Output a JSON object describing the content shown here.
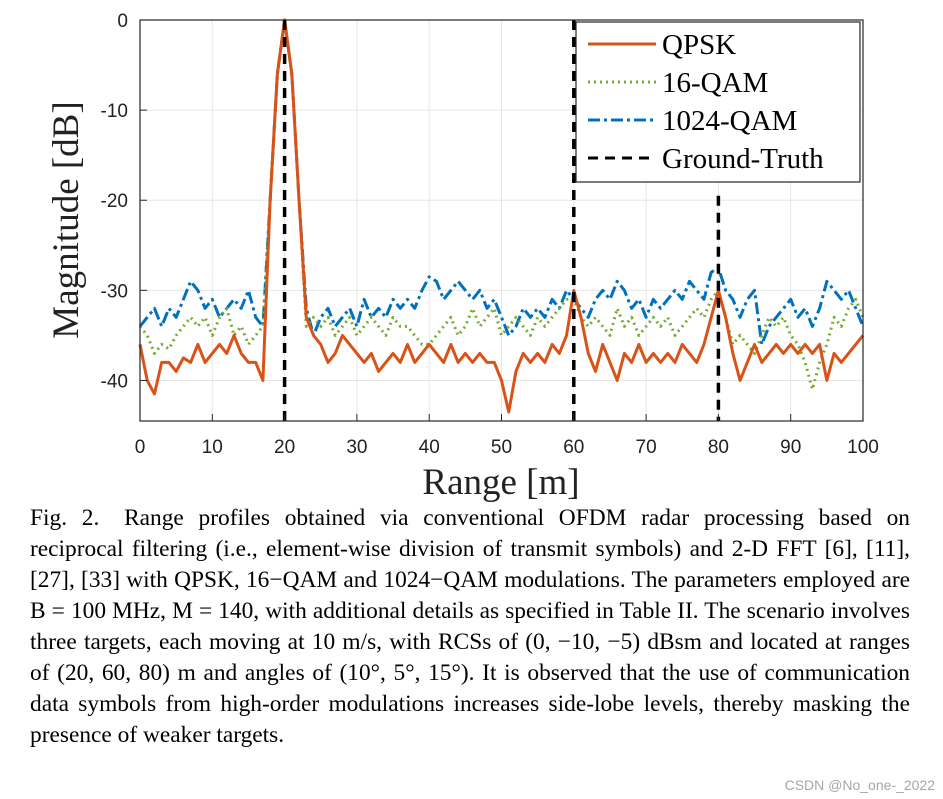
{
  "chart_data": {
    "type": "line",
    "xlabel": "Range [m]",
    "ylabel": "Magnitude [dB]",
    "xlim": [
      0,
      100
    ],
    "ylim": [
      -44.5,
      0
    ],
    "x_ticks": [
      "0",
      "10",
      "20",
      "30",
      "40",
      "50",
      "60",
      "70",
      "80",
      "90",
      "100"
    ],
    "y_ticks": [
      "0",
      "-10",
      "-20",
      "-30",
      "-40"
    ],
    "y_tick_values": [
      0,
      -10,
      -20,
      -30,
      -40
    ],
    "grid": true,
    "legend_position": "top-right",
    "series": [
      {
        "name": "QPSK",
        "color": "#d95319",
        "style": "solid",
        "points": [
          [
            0,
            -36
          ],
          [
            1,
            -40
          ],
          [
            2,
            -41.5
          ],
          [
            3,
            -38
          ],
          [
            4,
            -38
          ],
          [
            5,
            -39
          ],
          [
            6,
            -37.5
          ],
          [
            7,
            -38
          ],
          [
            8,
            -36
          ],
          [
            9,
            -38
          ],
          [
            10,
            -37
          ],
          [
            11,
            -36
          ],
          [
            12,
            -37
          ],
          [
            13,
            -35
          ],
          [
            14,
            -37
          ],
          [
            15,
            -38
          ],
          [
            16,
            -38
          ],
          [
            17,
            -40
          ],
          [
            18,
            -20
          ],
          [
            19,
            -6
          ],
          [
            20,
            0
          ],
          [
            21,
            -6
          ],
          [
            22,
            -20
          ],
          [
            23,
            -33
          ],
          [
            24,
            -35
          ],
          [
            25,
            -36
          ],
          [
            26,
            -38
          ],
          [
            27,
            -37
          ],
          [
            28,
            -35
          ],
          [
            29,
            -36
          ],
          [
            30,
            -37
          ],
          [
            31,
            -38
          ],
          [
            32,
            -37
          ],
          [
            33,
            -39
          ],
          [
            34,
            -38
          ],
          [
            35,
            -37
          ],
          [
            36,
            -38
          ],
          [
            37,
            -36
          ],
          [
            38,
            -38
          ],
          [
            39,
            -37
          ],
          [
            40,
            -36
          ],
          [
            41,
            -37
          ],
          [
            42,
            -38
          ],
          [
            43,
            -36
          ],
          [
            44,
            -38
          ],
          [
            45,
            -37
          ],
          [
            46,
            -38
          ],
          [
            47,
            -37
          ],
          [
            48,
            -38
          ],
          [
            49,
            -38
          ],
          [
            50,
            -40
          ],
          [
            51,
            -43.5
          ],
          [
            52,
            -39
          ],
          [
            53,
            -37
          ],
          [
            54,
            -38
          ],
          [
            55,
            -37
          ],
          [
            56,
            -38
          ],
          [
            57,
            -36
          ],
          [
            58,
            -37
          ],
          [
            59,
            -35
          ],
          [
            60,
            -30
          ],
          [
            61,
            -33
          ],
          [
            62,
            -37
          ],
          [
            63,
            -39
          ],
          [
            64,
            -36
          ],
          [
            65,
            -38
          ],
          [
            66,
            -40
          ],
          [
            67,
            -37
          ],
          [
            68,
            -38
          ],
          [
            69,
            -36
          ],
          [
            70,
            -38
          ],
          [
            71,
            -37
          ],
          [
            72,
            -38
          ],
          [
            73,
            -37
          ],
          [
            74,
            -38
          ],
          [
            75,
            -36
          ],
          [
            76,
            -37
          ],
          [
            77,
            -38
          ],
          [
            78,
            -36
          ],
          [
            79,
            -33
          ],
          [
            80,
            -30
          ],
          [
            81,
            -33
          ],
          [
            82,
            -37
          ],
          [
            83,
            -40
          ],
          [
            84,
            -38
          ],
          [
            85,
            -36
          ],
          [
            86,
            -38
          ],
          [
            87,
            -37
          ],
          [
            88,
            -36
          ],
          [
            89,
            -37
          ],
          [
            90,
            -36
          ],
          [
            91,
            -37
          ],
          [
            92,
            -36
          ],
          [
            93,
            -37
          ],
          [
            94,
            -36
          ],
          [
            95,
            -40
          ],
          [
            96,
            -37
          ],
          [
            97,
            -38
          ],
          [
            98,
            -37
          ],
          [
            99,
            -36
          ],
          [
            100,
            -35
          ]
        ]
      },
      {
        "name": "16-QAM",
        "color": "#77ac30",
        "style": "dotted",
        "points": [
          [
            0,
            -34
          ],
          [
            1,
            -35
          ],
          [
            2,
            -37
          ],
          [
            3,
            -36
          ],
          [
            4,
            -36.5
          ],
          [
            5,
            -35
          ],
          [
            6,
            -34
          ],
          [
            7,
            -33
          ],
          [
            8,
            -34
          ],
          [
            9,
            -33
          ],
          [
            10,
            -35
          ],
          [
            11,
            -33
          ],
          [
            12,
            -32
          ],
          [
            13,
            -35
          ],
          [
            14,
            -34
          ],
          [
            15,
            -36
          ],
          [
            16,
            -35
          ],
          [
            17,
            -34
          ],
          [
            18,
            -20
          ],
          [
            19,
            -6
          ],
          [
            20,
            0
          ],
          [
            21,
            -6
          ],
          [
            22,
            -20
          ],
          [
            23,
            -34
          ],
          [
            24,
            -33
          ],
          [
            25,
            -34
          ],
          [
            26,
            -33
          ],
          [
            27,
            -35
          ],
          [
            28,
            -34
          ],
          [
            29,
            -33
          ],
          [
            30,
            -35
          ],
          [
            31,
            -34
          ],
          [
            32,
            -33
          ],
          [
            33,
            -34
          ],
          [
            34,
            -35
          ],
          [
            35,
            -33
          ],
          [
            36,
            -34
          ],
          [
            37,
            -34
          ],
          [
            38,
            -35
          ],
          [
            39,
            -36
          ],
          [
            40,
            -36
          ],
          [
            41,
            -35
          ],
          [
            42,
            -34
          ],
          [
            43,
            -33
          ],
          [
            44,
            -35
          ],
          [
            45,
            -34
          ],
          [
            46,
            -32
          ],
          [
            47,
            -34
          ],
          [
            48,
            -33
          ],
          [
            49,
            -32
          ],
          [
            50,
            -35
          ],
          [
            51,
            -34
          ],
          [
            52,
            -33
          ],
          [
            53,
            -34
          ],
          [
            54,
            -35
          ],
          [
            55,
            -33
          ],
          [
            56,
            -34
          ],
          [
            57,
            -33
          ],
          [
            58,
            -32
          ],
          [
            59,
            -31
          ],
          [
            60,
            -31
          ],
          [
            61,
            -33
          ],
          [
            62,
            -34
          ],
          [
            63,
            -33
          ],
          [
            64,
            -34
          ],
          [
            65,
            -35
          ],
          [
            66,
            -32
          ],
          [
            67,
            -34
          ],
          [
            68,
            -33
          ],
          [
            69,
            -35
          ],
          [
            70,
            -34
          ],
          [
            71,
            -33
          ],
          [
            72,
            -34
          ],
          [
            73,
            -33
          ],
          [
            74,
            -35
          ],
          [
            75,
            -34
          ],
          [
            76,
            -33
          ],
          [
            77,
            -32
          ],
          [
            78,
            -33
          ],
          [
            79,
            -31
          ],
          [
            80,
            -30
          ],
          [
            81,
            -33
          ],
          [
            82,
            -36
          ],
          [
            83,
            -35
          ],
          [
            84,
            -36
          ],
          [
            85,
            -37
          ],
          [
            86,
            -35
          ],
          [
            87,
            -33
          ],
          [
            88,
            -34
          ],
          [
            89,
            -33
          ],
          [
            90,
            -35
          ],
          [
            91,
            -36
          ],
          [
            92,
            -38
          ],
          [
            93,
            -41
          ],
          [
            94,
            -38
          ],
          [
            95,
            -36
          ],
          [
            96,
            -33
          ],
          [
            97,
            -34
          ],
          [
            98,
            -32
          ],
          [
            99,
            -31
          ],
          [
            100,
            -33
          ]
        ]
      },
      {
        "name": "1024-QAM",
        "color": "#0072bd",
        "style": "dashdot",
        "points": [
          [
            0,
            -34
          ],
          [
            1,
            -33
          ],
          [
            2,
            -32
          ],
          [
            3,
            -34
          ],
          [
            4,
            -32
          ],
          [
            5,
            -33
          ],
          [
            6,
            -31
          ],
          [
            7,
            -29
          ],
          [
            8,
            -30
          ],
          [
            9,
            -32
          ],
          [
            10,
            -31
          ],
          [
            11,
            -33
          ],
          [
            12,
            -32
          ],
          [
            13,
            -31
          ],
          [
            14,
            -32
          ],
          [
            15,
            -30
          ],
          [
            16,
            -33
          ],
          [
            17,
            -34
          ],
          [
            18,
            -20
          ],
          [
            19,
            -6
          ],
          [
            20,
            0
          ],
          [
            21,
            -6
          ],
          [
            22,
            -20
          ],
          [
            23,
            -32
          ],
          [
            24,
            -35
          ],
          [
            25,
            -33
          ],
          [
            26,
            -32
          ],
          [
            27,
            -34
          ],
          [
            28,
            -33
          ],
          [
            29,
            -32
          ],
          [
            30,
            -34
          ],
          [
            31,
            -31
          ],
          [
            32,
            -33
          ],
          [
            33,
            -32
          ],
          [
            34,
            -33
          ],
          [
            35,
            -31
          ],
          [
            36,
            -32
          ],
          [
            37,
            -31
          ],
          [
            38,
            -32
          ],
          [
            39,
            -30
          ],
          [
            40,
            -28.5
          ],
          [
            41,
            -29
          ],
          [
            42,
            -31
          ],
          [
            43,
            -30
          ],
          [
            44,
            -29
          ],
          [
            45,
            -30
          ],
          [
            46,
            -31
          ],
          [
            47,
            -30
          ],
          [
            48,
            -32
          ],
          [
            49,
            -31
          ],
          [
            50,
            -33
          ],
          [
            51,
            -35
          ],
          [
            52,
            -34
          ],
          [
            53,
            -32
          ],
          [
            54,
            -33
          ],
          [
            55,
            -32
          ],
          [
            56,
            -33
          ],
          [
            57,
            -31
          ],
          [
            58,
            -32
          ],
          [
            59,
            -30
          ],
          [
            60,
            -31
          ],
          [
            61,
            -32
          ],
          [
            62,
            -33
          ],
          [
            63,
            -31
          ],
          [
            64,
            -30
          ],
          [
            65,
            -31
          ],
          [
            66,
            -29
          ],
          [
            67,
            -30
          ],
          [
            68,
            -32
          ],
          [
            69,
            -31
          ],
          [
            70,
            -33
          ],
          [
            71,
            -31
          ],
          [
            72,
            -32
          ],
          [
            73,
            -31
          ],
          [
            74,
            -30
          ],
          [
            75,
            -31
          ],
          [
            76,
            -29
          ],
          [
            77,
            -30
          ],
          [
            78,
            -31
          ],
          [
            79,
            -28
          ],
          [
            80,
            -27.5
          ],
          [
            81,
            -30
          ],
          [
            82,
            -31
          ],
          [
            83,
            -33
          ],
          [
            84,
            -31
          ],
          [
            85,
            -30
          ],
          [
            86,
            -36
          ],
          [
            87,
            -34
          ],
          [
            88,
            -33
          ],
          [
            89,
            -32
          ],
          [
            90,
            -31
          ],
          [
            91,
            -33
          ],
          [
            92,
            -32
          ],
          [
            93,
            -34
          ],
          [
            94,
            -32
          ],
          [
            95,
            -29
          ],
          [
            96,
            -30
          ],
          [
            97,
            -31
          ],
          [
            98,
            -30
          ],
          [
            99,
            -32
          ],
          [
            100,
            -34
          ]
        ]
      },
      {
        "name": "Ground-Truth",
        "color": "#000000",
        "style": "dashed",
        "lines": [
          [
            20,
            0
          ],
          [
            60,
            -44.5
          ],
          [
            80,
            -44.5
          ]
        ],
        "vlines": [
          {
            "x": 20,
            "top": 0
          },
          {
            "x": 60,
            "top": 0
          },
          {
            "x": 80,
            "top": -19.5
          }
        ]
      }
    ]
  },
  "caption": {
    "label": "Fig. 2.",
    "text": "Range profiles obtained via conventional OFDM radar processing based on reciprocal filtering (i.e., element-wise division of transmit symbols) and 2-D FFT [6], [11], [27], [33] with QPSK, 16−QAM and 1024−QAM modulations. The parameters employed are B = 100 MHz, M = 140, with additional details as specified in Table II. The scenario involves three targets, each moving at 10 m/s, with RCSs of (0, −10, −5) dBsm and located at ranges of (20, 60, 80) m and angles of (10°, 5°, 15°). It is observed that the use of communication data symbols from high-order modulations increases side-lobe levels, thereby masking the presence of weaker targets."
  },
  "watermark": "CSDN @No_one-_2022"
}
